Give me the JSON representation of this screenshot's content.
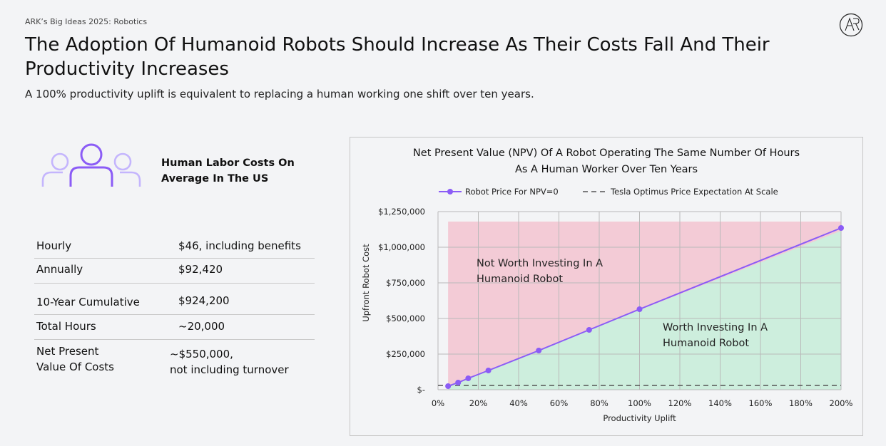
{
  "header": {
    "kicker": "ARK’s Big Ideas 2025: Robotics",
    "title": "The Adoption Of Humanoid Robots Should Increase As Their Costs Fall And Their Productivity Increases",
    "subtitle": "A 100% productivity uplift is equivalent to replacing a human working one shift over ten years."
  },
  "labor": {
    "heading_line1": "Human Labor Costs On",
    "heading_line2": "Average In The US",
    "icon": "people-group-icon",
    "rows": [
      {
        "label": "Hourly",
        "value": "$46, including benefits"
      },
      {
        "label": "Annually",
        "value": "$92,420"
      },
      {
        "label": "10-Year Cumulative",
        "value": "$924,200"
      },
      {
        "label": "Total Hours",
        "value": "~20,000"
      },
      {
        "label_line1": "Net Present",
        "label_line2": "Value Of Costs",
        "value_line1": "~$550,000,",
        "value_line2": "not including turnover"
      }
    ]
  },
  "colors": {
    "series": "#8b5cf6",
    "not_worth_region": "#f3cbd6",
    "worth_region": "#cdeedd",
    "tesla_line": "#555555",
    "grid": "#b9b9b9"
  },
  "chart_data": {
    "type": "line",
    "title_line1": "Net Present Value (NPV) Of A Robot Operating The Same Number Of Hours",
    "title_line2": "As A Human Worker Over Ten Years",
    "xlabel": "Productivity Uplift",
    "ylabel": "Upfront Robot Cost",
    "xlim": [
      0,
      200
    ],
    "ylim": [
      0,
      1250000
    ],
    "x_ticks": [
      0,
      20,
      40,
      60,
      80,
      100,
      120,
      140,
      160,
      180,
      200
    ],
    "x_tick_labels": [
      "0%",
      "20%",
      "40%",
      "60%",
      "80%",
      "100%",
      "120%",
      "140%",
      "160%",
      "180%",
      "200%"
    ],
    "y_ticks": [
      0,
      250000,
      500000,
      750000,
      1000000,
      1250000
    ],
    "y_tick_labels": [
      "$-",
      "$250,000",
      "$500,000",
      "$750,000",
      "$1,000,000",
      "$1,250,000"
    ],
    "legend_position": "top",
    "grid": true,
    "series": [
      {
        "name": "Robot Price For NPV=0",
        "x": [
          5,
          10,
          15,
          25,
          50,
          75,
          100,
          200
        ],
        "y": [
          25000,
          50000,
          80000,
          135000,
          275000,
          420000,
          565000,
          1135000
        ],
        "marker": "circle",
        "style": "solid"
      },
      {
        "name": "Tesla Optimus Price Expectation At Scale",
        "x": [
          0,
          200
        ],
        "y": [
          30000,
          30000
        ],
        "style": "dashed"
      }
    ],
    "regions": {
      "x_start": 5,
      "top_y": 1180000,
      "not_worth_label_line1": "Not Worth Investing In A",
      "not_worth_label_line2": "Humanoid Robot",
      "worth_label_line1": "Worth Investing In A",
      "worth_label_line2": "Humanoid Robot"
    }
  }
}
